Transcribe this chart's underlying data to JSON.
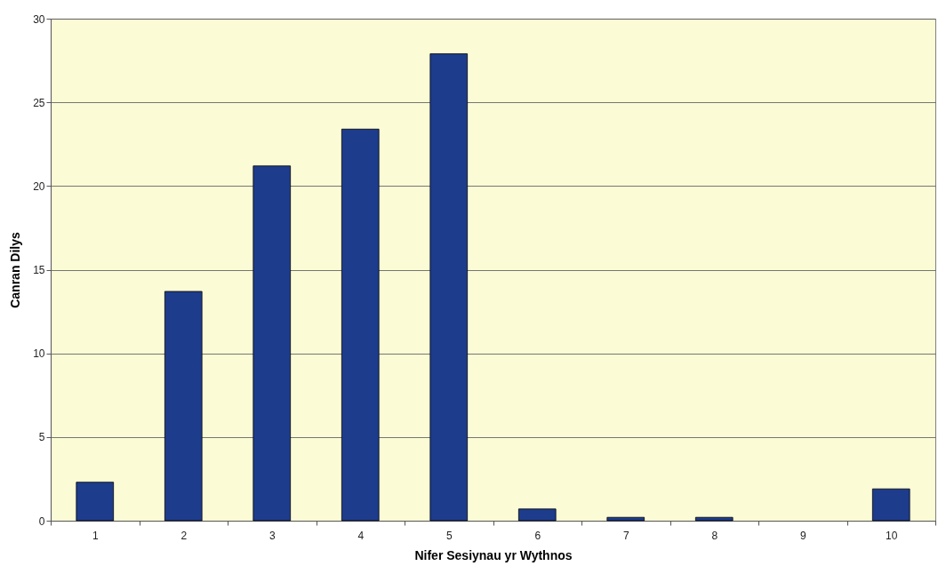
{
  "chart_data": {
    "type": "bar",
    "xlabel": "Nifer Sesiynau yr Wythnos",
    "ylabel": "Canran Dilys",
    "categories": [
      "1",
      "2",
      "3",
      "4",
      "5",
      "6",
      "7",
      "8",
      "9",
      "10"
    ],
    "values": [
      2.3,
      13.7,
      21.2,
      23.4,
      27.9,
      0.7,
      0.2,
      0.2,
      0,
      1.9
    ],
    "color": "#1e3c8c",
    "ylim": [
      0,
      30
    ],
    "yticks": [
      0,
      5,
      10,
      15,
      20,
      25,
      30
    ],
    "grid": "y"
  }
}
